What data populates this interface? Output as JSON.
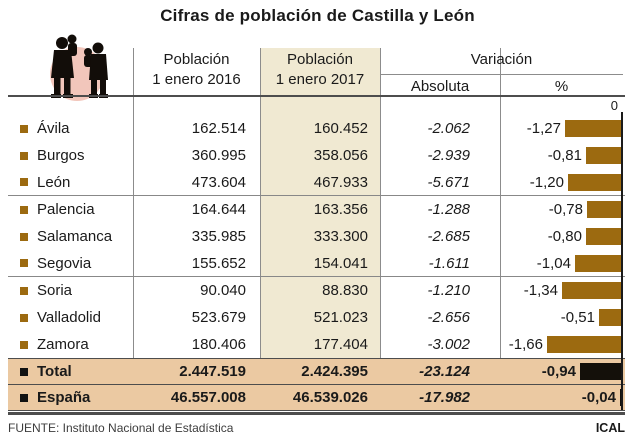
{
  "title": "Cifras de población de Castilla y León",
  "header": {
    "col_2016_line1": "Población",
    "col_2016_line2": "1 enero 2016",
    "col_2017_line1": "Población",
    "col_2017_line2": "1 enero 2017",
    "variacion": "Variación",
    "absoluta": "Absoluta",
    "percent": "%",
    "axis_zero": "0"
  },
  "colors": {
    "bar_brown": "#9c6a10",
    "bar_black": "#14100a",
    "beige_column": "#f0e9d2",
    "total_row_bg": "#ebc9a2",
    "icon_circle_pink": "#f2c6bb"
  },
  "rows": [
    {
      "name": "Ávila",
      "p2016": "162.514",
      "p2017": "160.452",
      "abs": "-2.062",
      "pct_label": "-1,27",
      "pct": 1.27
    },
    {
      "name": "Burgos",
      "p2016": "360.995",
      "p2017": "358.056",
      "abs": "-2.939",
      "pct_label": "-0,81",
      "pct": 0.81
    },
    {
      "name": "León",
      "p2016": "473.604",
      "p2017": "467.933",
      "abs": "-5.671",
      "pct_label": "-1,20",
      "pct": 1.2
    },
    {
      "name": "Palencia",
      "p2016": "164.644",
      "p2017": "163.356",
      "abs": "-1.288",
      "pct_label": "-0,78",
      "pct": 0.78
    },
    {
      "name": "Salamanca",
      "p2016": "335.985",
      "p2017": "333.300",
      "abs": "-2.685",
      "pct_label": "-0,80",
      "pct": 0.8
    },
    {
      "name": "Segovia",
      "p2016": "155.652",
      "p2017": "154.041",
      "abs": "-1.611",
      "pct_label": "-1,04",
      "pct": 1.04
    },
    {
      "name": "Soria",
      "p2016": "90.040",
      "p2017": "88.830",
      "abs": "-1.210",
      "pct_label": "-1,34",
      "pct": 1.34
    },
    {
      "name": "Valladolid",
      "p2016": "523.679",
      "p2017": "521.023",
      "abs": "-2.656",
      "pct_label": "-0,51",
      "pct": 0.51
    },
    {
      "name": "Zamora",
      "p2016": "180.406",
      "p2017": "177.404",
      "abs": "-3.002",
      "pct_label": "-1,66",
      "pct": 1.66
    }
  ],
  "totals": [
    {
      "name": "Total",
      "p2016": "2.447.519",
      "p2017": "2.424.395",
      "abs": "-23.124",
      "pct_label": "-0,94",
      "pct": 0.94
    },
    {
      "name": "España",
      "p2016": "46.557.008",
      "p2017": "46.539.026",
      "abs": "-17.982",
      "pct_label": "-0,04",
      "pct": 0.04
    }
  ],
  "footer": {
    "source": "FUENTE: Instituto Nacional de Estadística",
    "agency": "ICAL"
  },
  "chart_data": {
    "type": "bar",
    "orientation": "horizontal",
    "title": "Cifras de población de Castilla y León",
    "categories": [
      "Ávila",
      "Burgos",
      "León",
      "Palencia",
      "Salamanca",
      "Segovia",
      "Soria",
      "Valladolid",
      "Zamora",
      "Total",
      "España"
    ],
    "series": [
      {
        "name": "Población 1 enero 2016",
        "values": [
          162514,
          360995,
          473604,
          164644,
          335985,
          155652,
          90040,
          523679,
          180406,
          2447519,
          46557008
        ]
      },
      {
        "name": "Población 1 enero 2017",
        "values": [
          160452,
          358056,
          467933,
          163356,
          333300,
          154041,
          88830,
          521023,
          177404,
          2424395,
          46539026
        ]
      },
      {
        "name": "Variación absoluta",
        "values": [
          -2062,
          -2939,
          -5671,
          -1288,
          -2685,
          -1611,
          -1210,
          -2656,
          -3002,
          -23124,
          -17982
        ]
      },
      {
        "name": "Variación %",
        "values": [
          -1.27,
          -0.81,
          -1.2,
          -0.78,
          -0.8,
          -1.04,
          -1.34,
          -0.51,
          -1.66,
          -0.94,
          -0.04
        ]
      }
    ],
    "xlabel": "Variación %",
    "ylabel": "",
    "xlim": [
      -1.8,
      0
    ],
    "axis_reference": 0,
    "grid": false,
    "legend_position": "none",
    "note": "Bars drawn only for 'Variación %' series, extending left from a 0 axis; Total and España bars are black, provinces brown"
  }
}
